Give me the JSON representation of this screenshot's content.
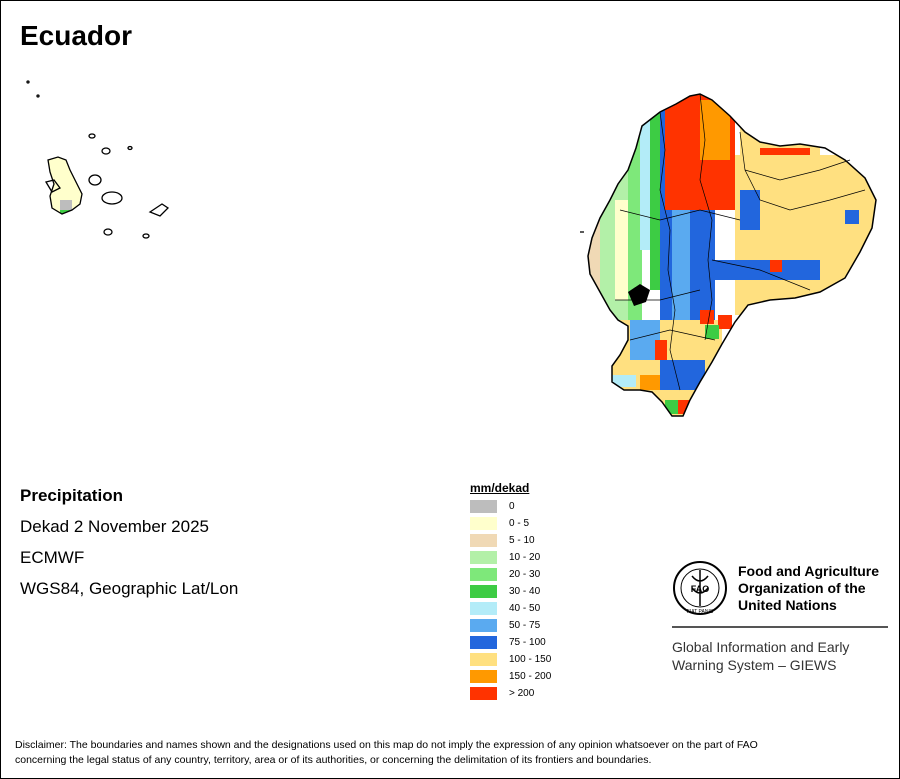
{
  "title": "Ecuador",
  "info": {
    "variable": "Precipitation",
    "period": "Dekad 2 November 2025",
    "source": "ECMWF",
    "projection": "WGS84, Geographic Lat/Lon"
  },
  "legend": {
    "title": "mm/dekad",
    "items": [
      {
        "label": "0",
        "color": "#bdbdbd"
      },
      {
        "label": "0 - 5",
        "color": "#ffffcc"
      },
      {
        "label": "5 - 10",
        "color": "#f0d9b5"
      },
      {
        "label": "10 - 20",
        "color": "#b3f0a8"
      },
      {
        "label": "20 - 30",
        "color": "#7ee87a"
      },
      {
        "label": "30 - 40",
        "color": "#3dcc44"
      },
      {
        "label": "40 - 50",
        "color": "#b3ecf8"
      },
      {
        "label": "50 - 75",
        "color": "#5aaaf0"
      },
      {
        "label": "75 - 100",
        "color": "#2266dd"
      },
      {
        "label": "100 - 150",
        "color": "#ffe080"
      },
      {
        "label": "150 - 200",
        "color": "#ff9900"
      },
      {
        "label": "> 200",
        "color": "#ff3300"
      }
    ]
  },
  "organization": {
    "name_line1": "Food and Agriculture",
    "name_line2": "Organization of the",
    "name_line3": "United Nations",
    "system_line1": "Global Information and Early",
    "system_line2": "Warning System – GIEWS",
    "logo_text": "FAO",
    "logo_motto": "FIAT PANIS"
  },
  "disclaimer_line1": "Disclaimer: The boundaries and names shown and the designations used on this map do not imply the expression of any opinion whatsoever on the part of FAO",
  "disclaimer_line2": "concerning the legal status of any country, territory, area or of its authorities, or concerning the delimitation of its frontiers and boundaries."
}
